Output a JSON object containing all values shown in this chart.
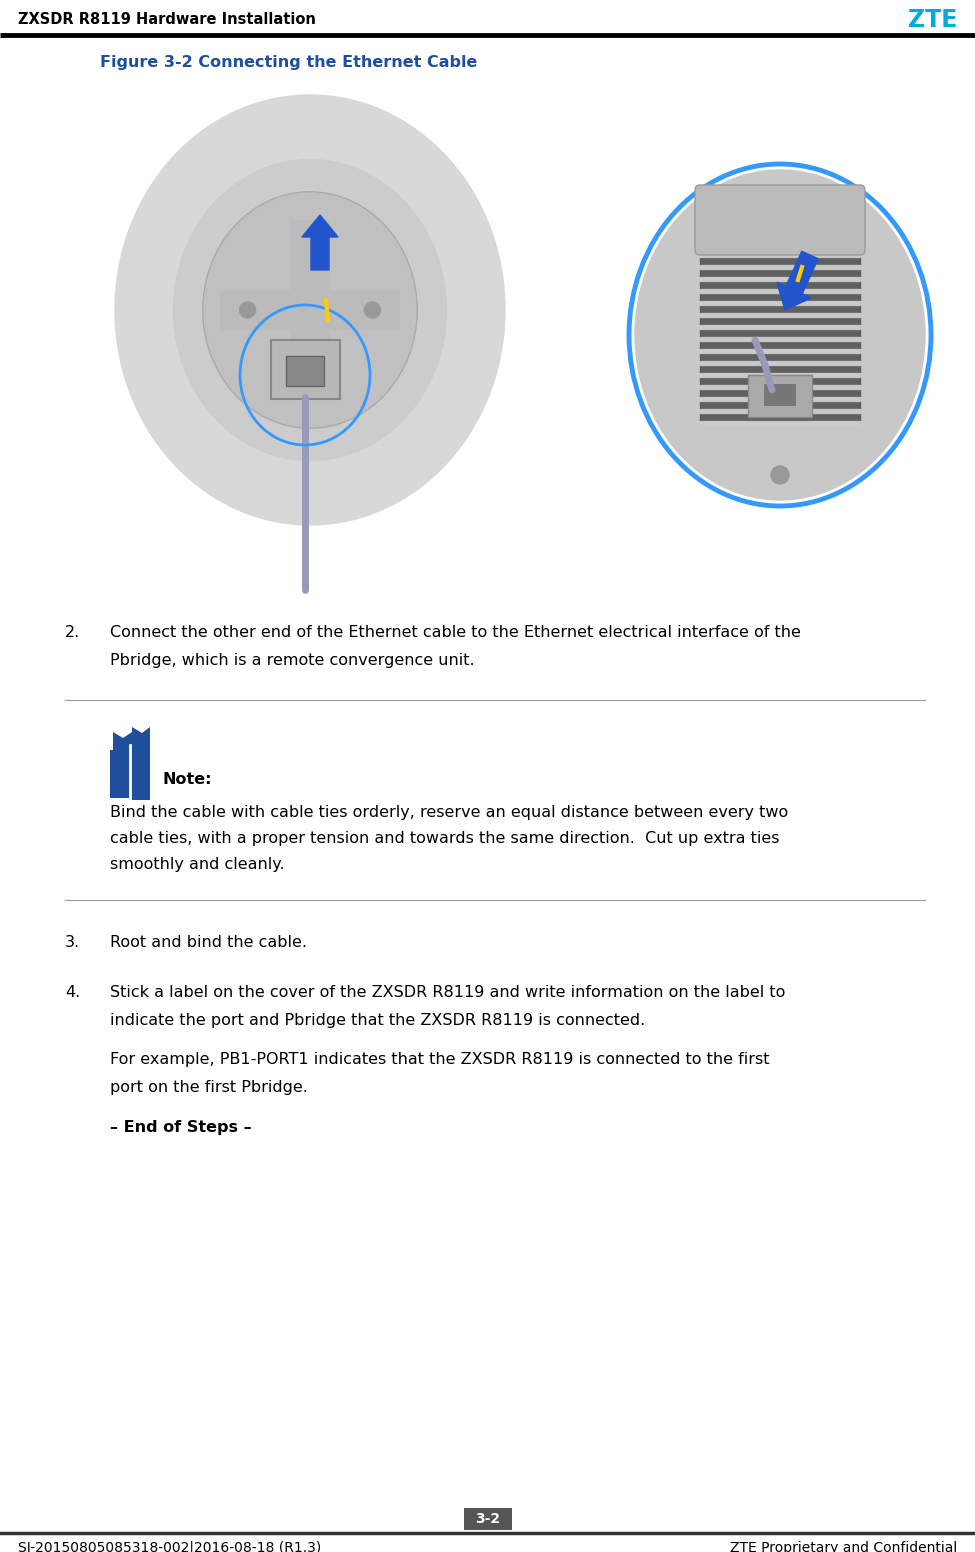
{
  "header_left": "ZXSDR R8119 Hardware Installation",
  "header_right": "ZTE",
  "header_right_color": "#00AADD",
  "header_line_color": "#000000",
  "figure_caption": "Figure 3-2 Connecting the Ethernet Cable",
  "figure_caption_color": "#1F4E9B",
  "step2_number": "2.",
  "step2_line1": "Connect the other end of the Ethernet cable to the Ethernet electrical interface of the",
  "step2_line2": "Pbridge, which is a remote convergence unit.",
  "note_label": "Note:",
  "note_line1": "Bind the cable with cable ties orderly, reserve an equal distance between every two",
  "note_line2": "cable ties, with a proper tension and towards the same direction.  Cut up extra ties",
  "note_line3": "smoothly and cleanly.",
  "step3_number": "3.",
  "step3_text": "Root and bind the cable.",
  "step4_number": "4.",
  "step4_line1": "Stick a label on the cover of the ZXSDR R8119 and write information on the label to",
  "step4_line2": "indicate the port and Pbridge that the ZXSDR R8119 is connected.",
  "step4_ex1": "For example, PB1-PORT1 indicates that the ZXSDR R8119 is connected to the first",
  "step4_ex2": "port on the first Pbridge.",
  "end_of_steps": "– End of Steps –",
  "page_number": "3-2",
  "footer_left": "SJ-20150805085318-002|2016-08-18 (R1.3)",
  "footer_right": "ZTE Proprietary and Confidential",
  "bg_color": "#FFFFFF",
  "text_color": "#000000",
  "note_icon_color": "#1F4E9B",
  "separator_color": "#999999",
  "header_line_color2": "#333333"
}
